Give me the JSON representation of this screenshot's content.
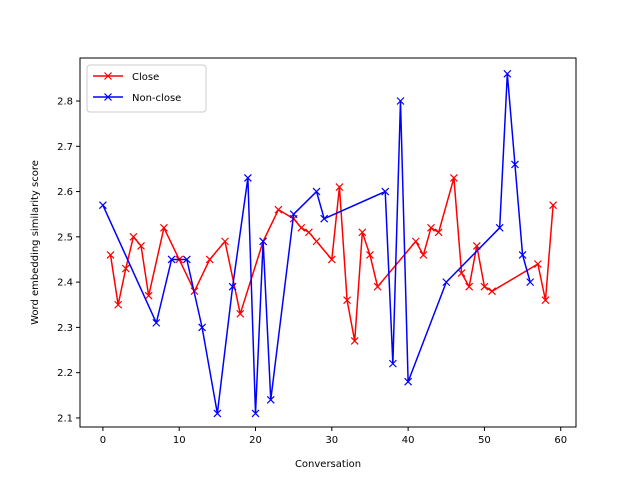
{
  "chart_data": {
    "type": "line",
    "xlabel": "Conversation",
    "ylabel": "Word embedding similarity score",
    "xlim": [
      -3.0,
      62.0
    ],
    "ylim": [
      2.08,
      2.895
    ],
    "x_ticks": [
      0,
      10,
      20,
      30,
      40,
      50,
      60
    ],
    "x_tick_labels": [
      "0",
      "10",
      "20",
      "30",
      "40",
      "50",
      "60"
    ],
    "y_ticks": [
      2.1,
      2.2,
      2.3,
      2.4,
      2.5,
      2.6,
      2.7,
      2.8
    ],
    "y_tick_labels": [
      "2.1",
      "2.2",
      "2.3",
      "2.4",
      "2.5",
      "2.6",
      "2.7",
      "2.8"
    ],
    "grid": false,
    "legend_position": "top-left",
    "series": [
      {
        "name": "Close",
        "color": "#ff0000",
        "marker": "x",
        "x": [
          1,
          2,
          3,
          4,
          5,
          6,
          8,
          10,
          12,
          14,
          16,
          18,
          21,
          23,
          25,
          26,
          27,
          28,
          30,
          31,
          32,
          33,
          34,
          35,
          36,
          41,
          42,
          43,
          44,
          46,
          47,
          48,
          49,
          50,
          51,
          57,
          58,
          59
        ],
        "y": [
          2.46,
          2.35,
          2.43,
          2.5,
          2.48,
          2.37,
          2.52,
          2.45,
          2.38,
          2.45,
          2.49,
          2.33,
          2.49,
          2.56,
          2.54,
          2.52,
          2.51,
          2.49,
          2.45,
          2.61,
          2.36,
          2.27,
          2.51,
          2.46,
          2.39,
          2.49,
          2.46,
          2.52,
          2.51,
          2.63,
          2.42,
          2.39,
          2.48,
          2.39,
          2.38,
          2.44,
          2.36,
          2.57
        ]
      },
      {
        "name": "Non-close",
        "color": "#0000ff",
        "marker": "x",
        "x": [
          0,
          7,
          9,
          11,
          13,
          15,
          17,
          19,
          20,
          21,
          22,
          25,
          28,
          29,
          37,
          38,
          39,
          40,
          45,
          52,
          53,
          54,
          55,
          56
        ],
        "y": [
          2.57,
          2.31,
          2.45,
          2.45,
          2.3,
          2.11,
          2.39,
          2.63,
          2.11,
          2.49,
          2.14,
          2.55,
          2.6,
          2.54,
          2.6,
          2.22,
          2.8,
          2.18,
          2.4,
          2.52,
          2.86,
          2.66,
          2.46,
          2.4
        ]
      }
    ]
  }
}
